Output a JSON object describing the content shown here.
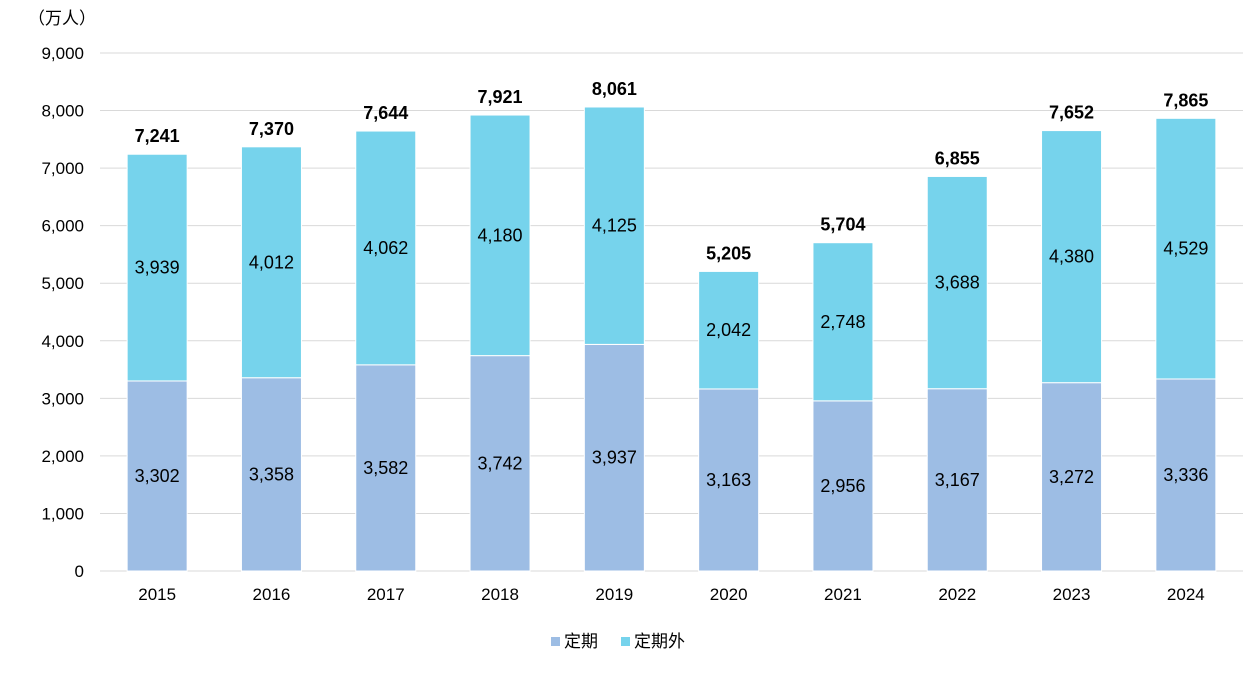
{
  "chart_data": {
    "type": "bar",
    "stacked": true,
    "unit_label": "（万人）",
    "categories": [
      "2015",
      "2016",
      "2017",
      "2018",
      "2019",
      "2020",
      "2021",
      "2022",
      "2023",
      "2024"
    ],
    "series": [
      {
        "name": "定期",
        "color": "#9DBDE4",
        "values": [
          3302,
          3358,
          3582,
          3742,
          3937,
          3163,
          2956,
          3167,
          3272,
          3336
        ]
      },
      {
        "name": "定期外",
        "color": "#76D3EC",
        "values": [
          3939,
          4012,
          4062,
          4180,
          4125,
          2042,
          2748,
          3688,
          4380,
          4529
        ]
      }
    ],
    "totals": [
      7241,
      7370,
      7644,
      7921,
      8061,
      5205,
      5704,
      6855,
      7652,
      7865
    ],
    "yticks": [
      0,
      1000,
      2000,
      3000,
      4000,
      5000,
      6000,
      7000,
      8000,
      9000
    ],
    "ylim": [
      0,
      9000
    ],
    "grid": true,
    "legend_position": "bottom",
    "label_color": "#000000",
    "grid_color": "#d9d9d9"
  }
}
